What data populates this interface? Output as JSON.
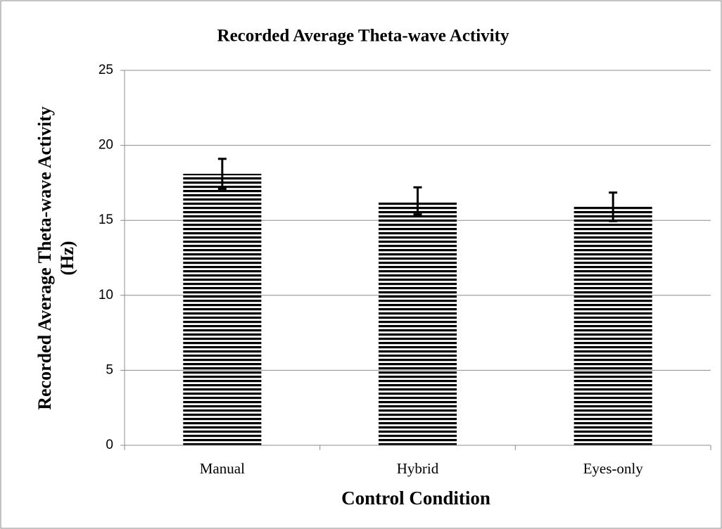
{
  "chart_data": {
    "type": "bar",
    "title": "Recorded Average Theta-wave Activity",
    "xlabel": "Control Condition",
    "ylabel": [
      "Recorded Average Theta-wave Activity",
      "(Hz)"
    ],
    "categories": [
      "Manual",
      "Hybrid",
      "Eyes-only"
    ],
    "values": [
      18.1,
      16.3,
      15.9
    ],
    "errors": [
      1.0,
      0.9,
      0.95
    ],
    "color": "#000000",
    "ylim": [
      0,
      25
    ],
    "yticks": [
      0,
      5,
      10,
      15,
      20,
      25
    ],
    "grid": true
  }
}
